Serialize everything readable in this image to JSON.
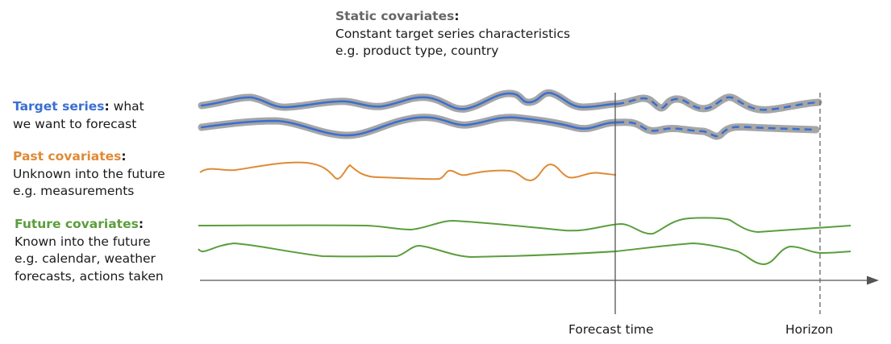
{
  "static_covariates": {
    "heading": "Static covariates",
    "colon": ":",
    "line1": "Constant target series characteristics",
    "line2": "e.g. product type, country"
  },
  "target_series": {
    "heading": "Target series",
    "colon": ":",
    "line1_rest": " what",
    "line2": "we want to forecast",
    "color": "#3a6fd0",
    "halo_color": "#a6a6a6"
  },
  "past_covariates": {
    "heading": "Past covariates",
    "colon": ":",
    "line1": "Unknown into the future",
    "line2": "e.g. measurements",
    "color": "#e08a35"
  },
  "future_covariates": {
    "heading": "Future covariates",
    "colon": ":",
    "line1": "Known into the future",
    "line2": "e.g. calendar, weather",
    "line3": "forecasts, actions taken",
    "color": "#5a9e3c"
  },
  "time_axis": {
    "forecast_time_label": "Forecast time",
    "horizon_label": "Horizon"
  },
  "colors": {
    "static_heading": "#666666",
    "axis": "#555555",
    "text": "#1a1a1a"
  }
}
